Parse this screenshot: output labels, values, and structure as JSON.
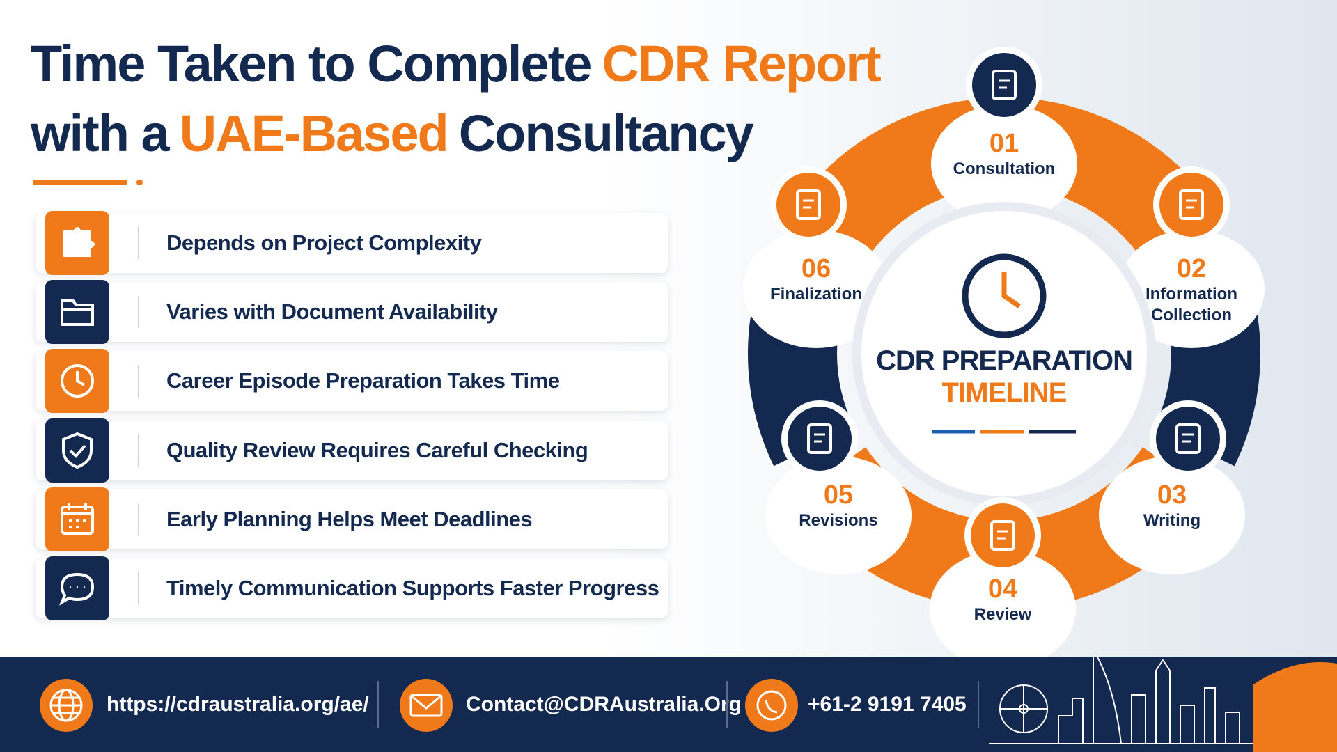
{
  "header": {
    "title": {
      "lines": [
        [
          "Time Taken to Complete",
          "CDR Report"
        ],
        [
          "with a",
          "UAE-Based",
          "Consultancy"
        ]
      ]
    }
  },
  "factors": [
    "Depends on Project Complexity",
    "Varies with Document Availability",
    "Career Episode Preparation Takes Time",
    "Quality Review Requires Careful Checking",
    "Early Planning Helps Meet Deadlines",
    "Timely Communication Supports Faster Progress"
  ],
  "cycle": {
    "center": {
      "line1": "CDR PREPARATION",
      "line2": "TIMELINE"
    },
    "steps": [
      {
        "number": "01",
        "label": "Consultation"
      },
      {
        "number": "02",
        "label": "Information Collection"
      },
      {
        "number": "03",
        "label": "Writing"
      },
      {
        "number": "04",
        "label": "Review"
      },
      {
        "number": "05",
        "label": "Revisions"
      },
      {
        "number": "06",
        "label": "Finalization"
      }
    ]
  },
  "footer": {
    "website": "https://cdraustralia.org/ae/",
    "email": "Contact@CDRAustralia.Org",
    "phone": "+61-2 9191 7405"
  }
}
